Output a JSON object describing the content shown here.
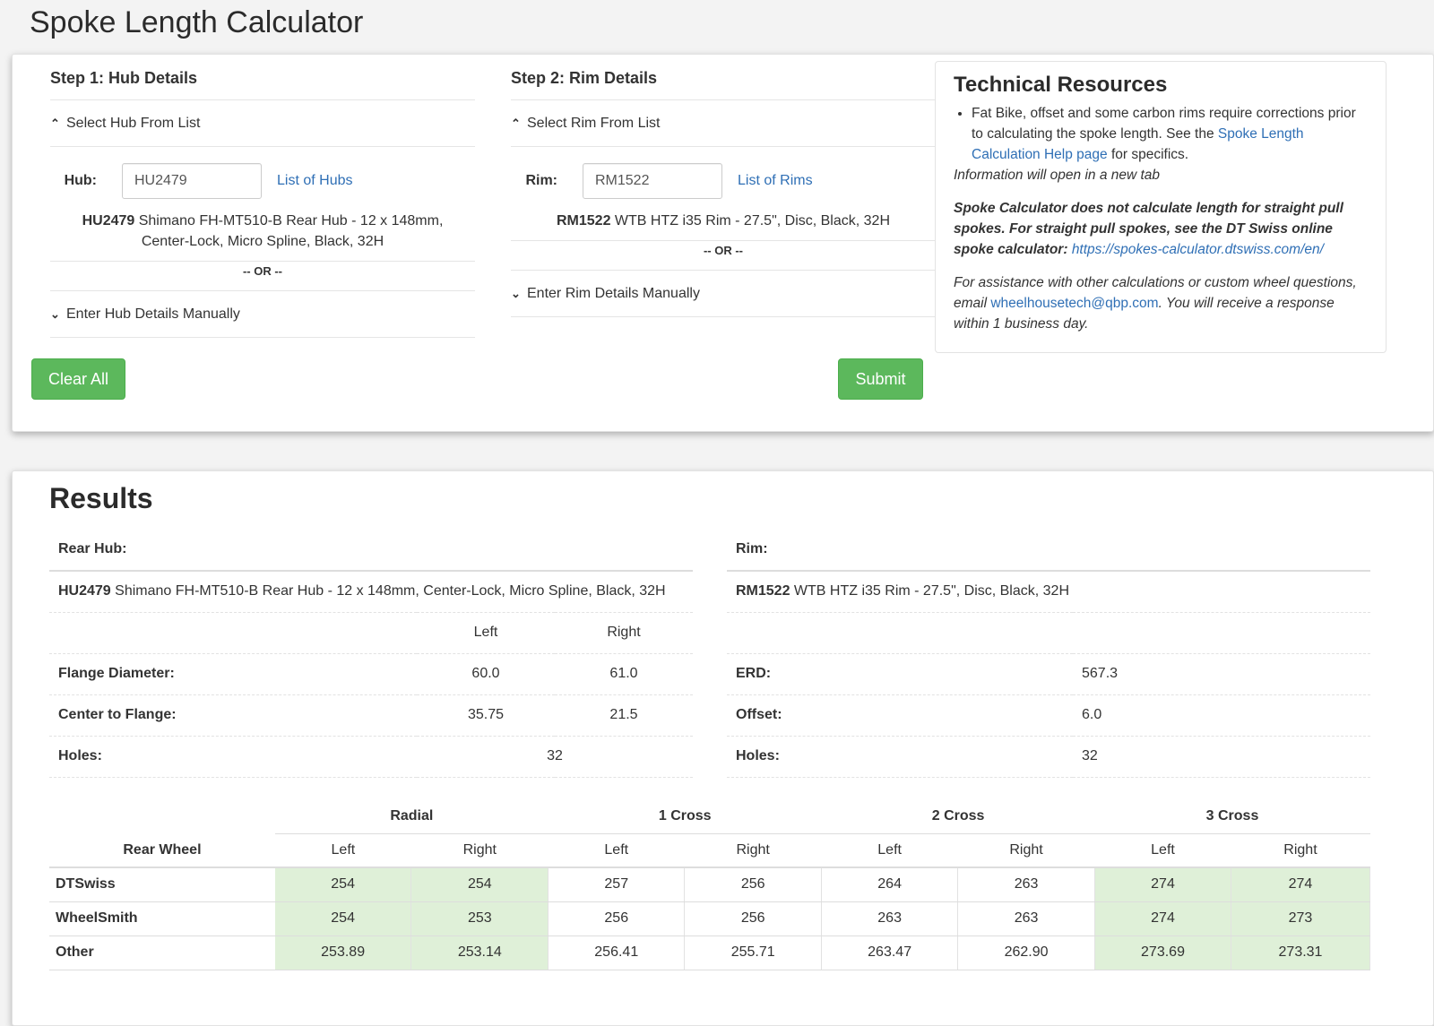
{
  "page": {
    "title": "Spoke Length Calculator"
  },
  "colors": {
    "success_button": "#5cb85c",
    "highlight_cell": "#dff0d8",
    "link": "#2f6fb5"
  },
  "step1": {
    "title": "Step 1: Hub Details",
    "select_label": "Select Hub From List",
    "field_label": "Hub:",
    "field_value": "HU2479",
    "list_link": "List of Hubs",
    "desc_code": "HU2479",
    "desc_text": " Shimano FH-MT510-B Rear Hub - 12 x 148mm, Center-Lock, Micro Spline, Black, 32H",
    "or_text": "-- OR --",
    "manual_label": "Enter Hub Details Manually"
  },
  "step2": {
    "title": "Step 2: Rim Details",
    "select_label": "Select Rim From List",
    "field_label": "Rim:",
    "field_value": "RM1522",
    "list_link": "List of Rims",
    "desc_code": "RM1522",
    "desc_text": " WTB HTZ i35 Rim - 27.5\", Disc, Black, 32H",
    "or_text": "-- OR --",
    "manual_label": "Enter Rim Details Manually"
  },
  "buttons": {
    "clear": "Clear All",
    "submit": "Submit"
  },
  "tech": {
    "title": "Technical Resources",
    "bullet_pre": "Fat Bike, offset and some carbon rims require corrections prior to calculating the spoke length. See the ",
    "bullet_link": "Spoke Length Calculation Help page",
    "bullet_post": " for specifics.",
    "new_tab_note": "Information will open in a new tab",
    "straight_pull": "Spoke Calculator does not calculate length for straight pull spokes. For straight pull spokes, see the DT Swiss online spoke calculator:",
    "dt_link": "https://spokes-calculator.dtswiss.com/en/",
    "assist_pre": "For assistance with other calculations or custom wheel questions, email ",
    "email": "wheelhousetech@qbp.com",
    "assist_post": ". You will receive a response within 1 business day."
  },
  "results": {
    "title": "Results",
    "hub": {
      "heading": "Rear Hub:",
      "code": "HU2479",
      "desc": " Shimano FH-MT510-B Rear Hub - 12 x 148mm, Center-Lock, Micro Spline, Black, 32H",
      "col_left": "Left",
      "col_right": "Right",
      "flange_label": "Flange Diameter:",
      "flange_left": "60.0",
      "flange_right": "61.0",
      "ctf_label": "Center to Flange:",
      "ctf_left": "35.75",
      "ctf_right": "21.5",
      "holes_label": "Holes:",
      "holes": "32"
    },
    "rim": {
      "heading": "Rim:",
      "code": "RM1522",
      "desc": " WTB HTZ i35 Rim - 27.5\", Disc, Black, 32H",
      "erd_label": "ERD:",
      "erd": "567.3",
      "offset_label": "Offset:",
      "offset": "6.0",
      "holes_label": "Holes:",
      "holes": "32"
    },
    "spokes": {
      "corner": "Rear Wheel",
      "groups": [
        "Radial",
        "1 Cross",
        "2 Cross",
        "3 Cross"
      ],
      "sub": [
        "Left",
        "Right",
        "Left",
        "Right",
        "Left",
        "Right",
        "Left",
        "Right"
      ],
      "rows": [
        {
          "name": "DTSwiss",
          "values": [
            "254",
            "254",
            "257",
            "256",
            "264",
            "263",
            "274",
            "274"
          ]
        },
        {
          "name": "WheelSmith",
          "values": [
            "254",
            "253",
            "256",
            "256",
            "263",
            "263",
            "274",
            "273"
          ]
        },
        {
          "name": "Other",
          "values": [
            "253.89",
            "253.14",
            "256.41",
            "255.71",
            "263.47",
            "262.90",
            "273.69",
            "273.31"
          ]
        }
      ]
    }
  }
}
